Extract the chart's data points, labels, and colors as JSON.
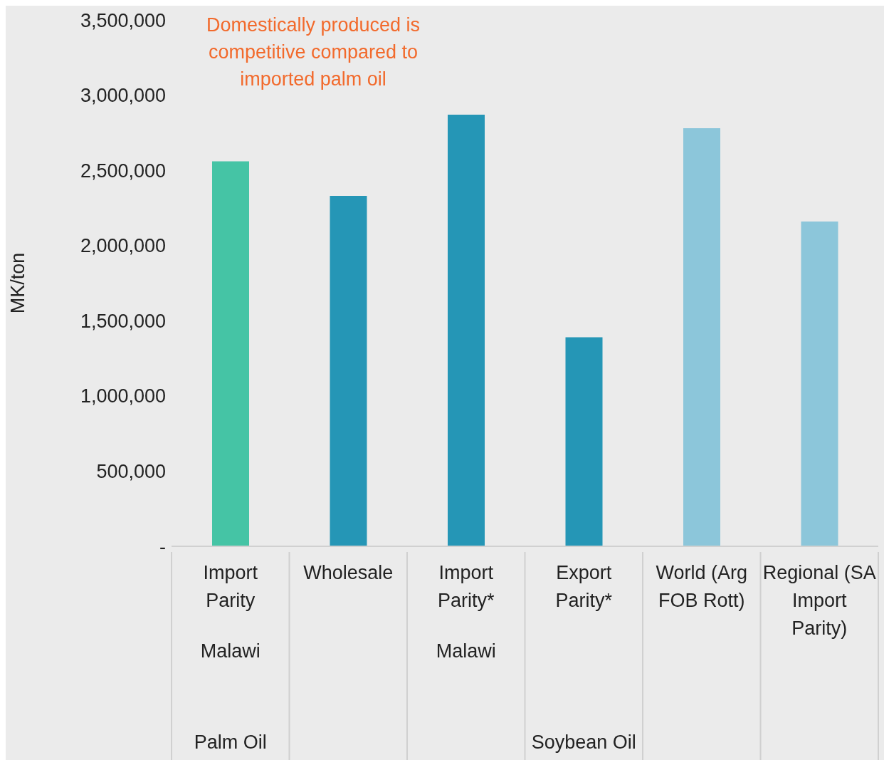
{
  "chart_data": {
    "type": "bar",
    "ylabel": "MK/ton",
    "categories": [
      "Import Parity",
      "Wholesale",
      "Import Parity*",
      "Export Parity*",
      "World (Arg FOB Rott)",
      "Regional (SA Import Parity)"
    ],
    "values": [
      2560000,
      2330000,
      2870000,
      1390000,
      2780000,
      2160000
    ],
    "colors": [
      "#45c4a5",
      "#2596b6",
      "#2596b6",
      "#2596b6",
      "#8cc6da",
      "#8cc6da"
    ],
    "ylim": [
      0,
      3500000
    ],
    "yticks": [
      {
        "value": 0,
        "label": "-"
      },
      {
        "value": 500000,
        "label": "500,000"
      },
      {
        "value": 1000000,
        "label": "1,000,000"
      },
      {
        "value": 1500000,
        "label": "1,500,000"
      },
      {
        "value": 2000000,
        "label": "2,000,000"
      },
      {
        "value": 2500000,
        "label": "2,500,000"
      },
      {
        "value": 3000000,
        "label": "3,000,000"
      },
      {
        "value": 3500000,
        "label": "3,500,000"
      }
    ],
    "annotations": [
      "Domestically produced is competitive compared to imported palm oil",
      "Malawi",
      "Malawi",
      "Palm Oil",
      "Soybean Oil"
    ]
  }
}
